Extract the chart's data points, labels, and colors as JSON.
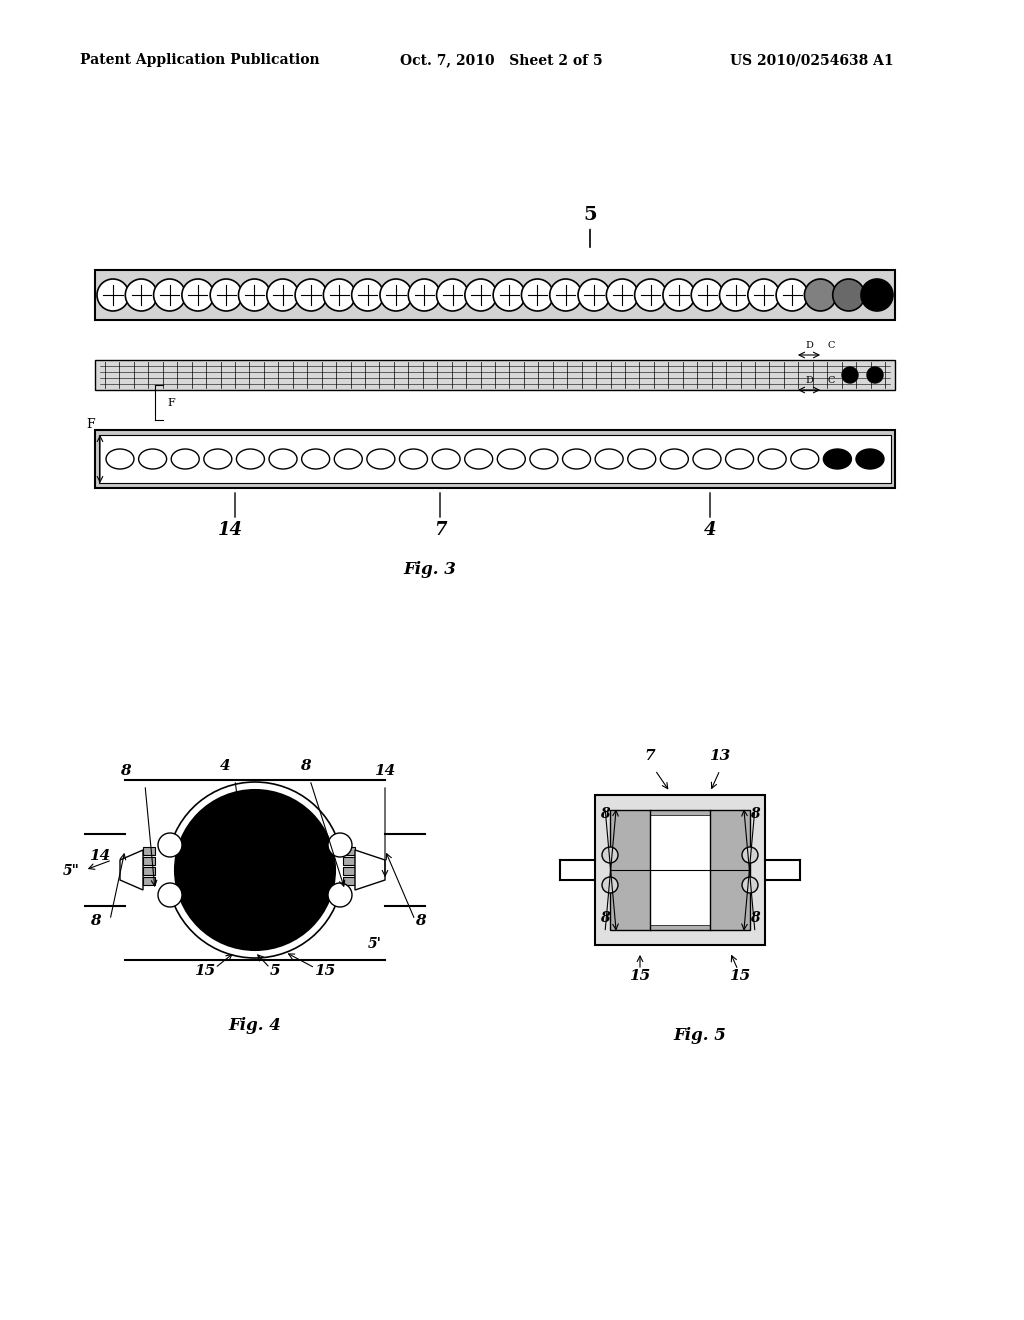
{
  "bg_color": "#ffffff",
  "header_left": "Patent Application Publication",
  "header_mid": "Oct. 7, 2010   Sheet 2 of 5",
  "header_right": "US 2010/0254638 A1",
  "fig3_label": "Fig. 3",
  "fig4_label": "Fig. 4",
  "fig5_label": "Fig. 5",
  "label_5": "5",
  "label_14_3": "14",
  "label_7_3": "7",
  "label_4_3": "4",
  "label_D1": "D",
  "label_C1": "C",
  "label_D2": "D",
  "label_C2": "C",
  "label_F": "F",
  "label_F2": "F",
  "label_8_4a": "8",
  "label_4_4": "4",
  "label_8_4b": "8",
  "label_14_4": "14",
  "label_8_4c": "8",
  "label_8_4d": "8",
  "label_5pp": "5\"",
  "label_15_4a": "15",
  "label_5_4": "5",
  "label_15_4b": "15",
  "label_5p": "5'",
  "label_7_5": "7",
  "label_13_5": "13",
  "label_8_5a": "8",
  "label_8_5b": "8",
  "label_8_5c": "8",
  "label_8_5d": "8",
  "label_15_5a": "15",
  "label_15_5b": "15"
}
